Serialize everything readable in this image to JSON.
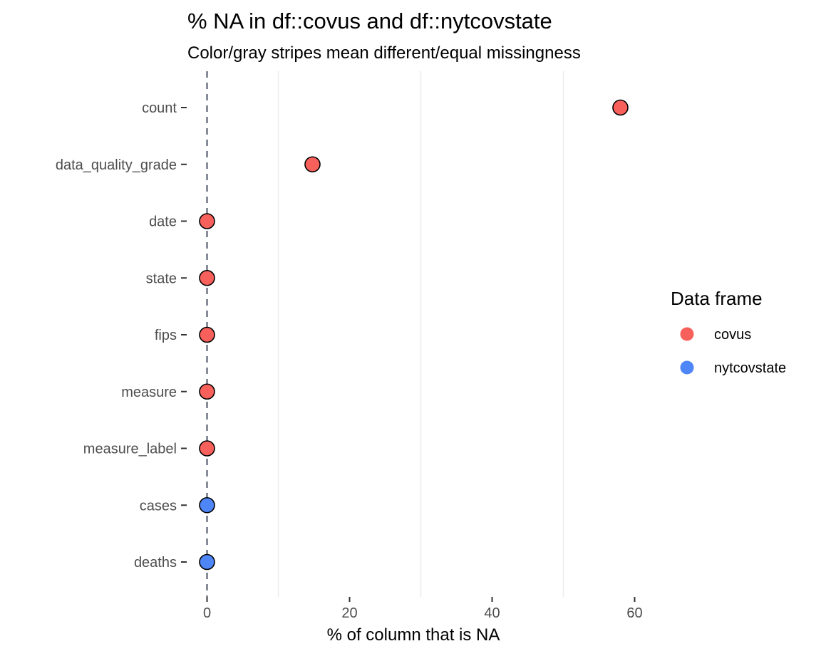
{
  "chart_data": {
    "type": "scatter",
    "title": "% NA in df::covus and df::nytcovstate",
    "subtitle": "Color/gray stripes mean different/equal missingness",
    "xlabel": "% of column that is NA",
    "ylabel": "",
    "xlim": [
      0,
      80
    ],
    "xticks": [
      0,
      20,
      40,
      60
    ],
    "xtick_labels": [
      "0",
      "20",
      "40",
      "60"
    ],
    "x_minor_gridlines": [
      10,
      30,
      50
    ],
    "reference_line": {
      "x": 0,
      "style": "dashed",
      "color": "#5a6272"
    },
    "categories": [
      "count",
      "data_quality_grade",
      "date",
      "state",
      "fips",
      "measure",
      "measure_label",
      "cases",
      "deaths"
    ],
    "points": [
      {
        "variable": "count",
        "value": 58,
        "frame": "covus"
      },
      {
        "variable": "data_quality_grade",
        "value": 14.8,
        "frame": "covus"
      },
      {
        "variable": "date",
        "value": 0,
        "frame": "covus"
      },
      {
        "variable": "state",
        "value": 0,
        "frame": "covus"
      },
      {
        "variable": "fips",
        "value": 0,
        "frame": "covus"
      },
      {
        "variable": "measure",
        "value": 0,
        "frame": "covus"
      },
      {
        "variable": "measure_label",
        "value": 0,
        "frame": "covus"
      },
      {
        "variable": "cases",
        "value": 0,
        "frame": "nytcovstate"
      },
      {
        "variable": "deaths",
        "value": 0,
        "frame": "nytcovstate"
      }
    ],
    "legend": {
      "title": "Data frame",
      "position": "right",
      "entries": [
        {
          "name": "covus",
          "color": "#f8605b"
        },
        {
          "name": "nytcovstate",
          "color": "#4f86f7"
        }
      ]
    },
    "colors": {
      "covus": "#f8605b",
      "nytcovstate": "#4f86f7"
    }
  }
}
